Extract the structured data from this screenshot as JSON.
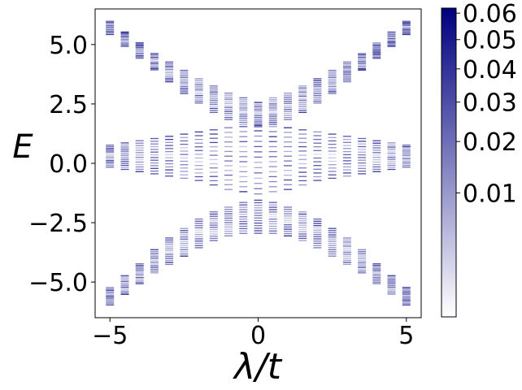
{
  "chart_data": {
    "type": "spectrum",
    "xlabel": "λ/t",
    "ylabel": "E",
    "xlim": [
      -5.5,
      5.5
    ],
    "ylim": [
      -6.5,
      6.5
    ],
    "x_ticks": [
      -5,
      0,
      5
    ],
    "x_tick_labels": [
      "−5",
      "0",
      "5"
    ],
    "y_ticks": [
      -5.0,
      -2.5,
      0.0,
      2.5,
      5.0
    ],
    "y_tick_labels": [
      "−5.0",
      "−2.5",
      "0.0",
      "2.5",
      "5.0"
    ],
    "grid": false,
    "lambda_values": [
      -5.0,
      -4.5,
      -4.0,
      -3.5,
      -3.0,
      -2.5,
      -2.0,
      -1.5,
      -1.0,
      -0.5,
      0.0,
      0.5,
      1.0,
      1.5,
      2.0,
      2.5,
      3.0,
      3.5,
      4.0,
      4.5,
      5.0
    ],
    "bands": [
      {
        "name": "upper",
        "E_min": [
          5.4,
          4.9,
          4.4,
          3.9,
          3.4,
          2.9,
          2.5,
          2.1,
          1.8,
          1.6,
          1.5,
          1.6,
          1.8,
          2.1,
          2.5,
          2.9,
          3.4,
          3.9,
          4.4,
          4.9,
          5.4
        ],
        "E_max": [
          6.0,
          5.55,
          5.1,
          4.65,
          4.3,
          3.95,
          3.6,
          3.3,
          3.0,
          2.8,
          2.6,
          2.8,
          3.0,
          3.3,
          3.6,
          3.95,
          4.3,
          4.65,
          5.1,
          5.55,
          6.0
        ]
      },
      {
        "name": "middle",
        "E_min": [
          -0.2,
          -0.3,
          -0.4,
          -0.5,
          -0.6,
          -0.7,
          -0.8,
          -1.0,
          -1.2,
          -1.3,
          -1.4,
          -1.3,
          -1.2,
          -1.0,
          -0.8,
          -0.7,
          -0.6,
          -0.5,
          -0.4,
          -0.3,
          -0.2
        ],
        "E_max": [
          0.8,
          0.9,
          1.0,
          1.1,
          1.2,
          1.3,
          1.4,
          1.5,
          1.6,
          1.65,
          1.7,
          1.65,
          1.6,
          1.5,
          1.4,
          1.3,
          1.2,
          1.1,
          1.0,
          0.9,
          0.8
        ]
      },
      {
        "name": "lower",
        "E_min": [
          -6.0,
          -5.55,
          -5.1,
          -4.65,
          -4.3,
          -3.95,
          -3.6,
          -3.3,
          -3.1,
          -3.0,
          -3.0,
          -3.0,
          -3.1,
          -3.3,
          -3.6,
          -3.95,
          -4.3,
          -4.65,
          -5.1,
          -5.55,
          -6.0
        ],
        "E_max": [
          -5.2,
          -4.7,
          -4.2,
          -3.6,
          -3.1,
          -2.7,
          -2.3,
          -2.0,
          -1.8,
          -1.6,
          -1.5,
          -1.6,
          -1.8,
          -2.0,
          -2.3,
          -2.7,
          -3.1,
          -3.6,
          -4.2,
          -4.7,
          -5.2
        ]
      }
    ],
    "colorbar": {
      "cmap": [
        "#ffffff",
        "#000080"
      ],
      "scale": "power",
      "vmin": 0.0,
      "vmax": 0.062,
      "ticks": [
        0.01,
        0.02,
        0.03,
        0.04,
        0.05,
        0.06
      ],
      "tick_labels": [
        "0.01",
        "0.02",
        "0.03",
        "0.04",
        "0.05",
        "0.06"
      ]
    }
  }
}
